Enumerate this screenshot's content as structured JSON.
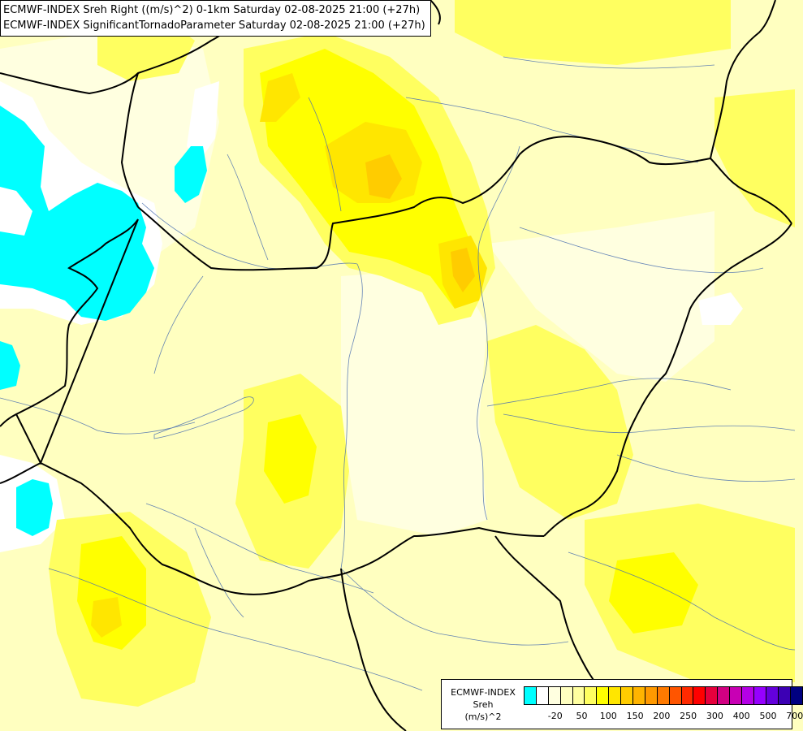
{
  "title": {
    "line1": "ECMWF-INDEX Sreh Right ((m/s)^2) 0-1km Saturday 02-08-2025 21:00 (+27h)",
    "line2": "ECMWF-INDEX SignificantTornadoParameter Saturday 02-08-2025 21:00 (+27h)"
  },
  "legend": {
    "caption_line1": "ECMWF-INDEX",
    "caption_line2": "Sreh",
    "caption_line3": "(m/s)^2",
    "colors": [
      "#00ffff",
      "#ffffff",
      "#ffffe0",
      "#ffffc0",
      "#ffffa0",
      "#ffff60",
      "#ffff00",
      "#ffe600",
      "#ffcc00",
      "#ffb400",
      "#ff9900",
      "#ff7a00",
      "#ff5500",
      "#ff2a00",
      "#ff0000",
      "#e6003c",
      "#d20082",
      "#c800b4",
      "#b400e6",
      "#9600ff",
      "#6400dc",
      "#3c00b4",
      "#000080"
    ],
    "ticks": [
      {
        "label": "-20",
        "index": 1
      },
      {
        "label": "50",
        "index": 3
      },
      {
        "label": "100",
        "index": 5
      },
      {
        "label": "150",
        "index": 7
      },
      {
        "label": "200",
        "index": 9
      },
      {
        "label": "250",
        "index": 11
      },
      {
        "label": "300",
        "index": 13
      },
      {
        "label": "400",
        "index": 15
      },
      {
        "label": "500",
        "index": 17
      },
      {
        "label": "700",
        "index": 19
      }
    ]
  }
}
